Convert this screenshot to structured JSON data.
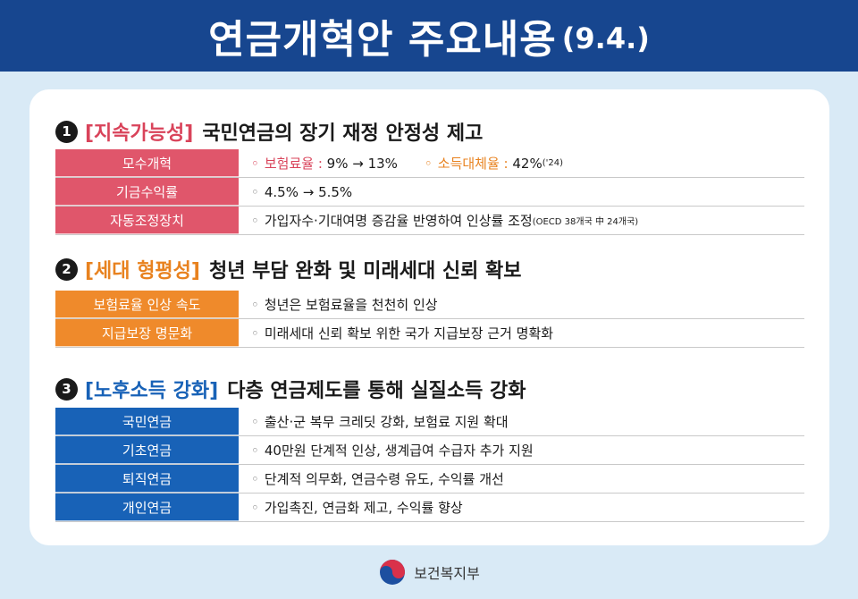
{
  "header": {
    "title": "연금개혁안 주요내용",
    "date": "(9.4.)"
  },
  "sections": [
    {
      "number": "1",
      "tag": "[지속가능성]",
      "title": "국민연금의 장기 재정 안정성 제고",
      "rows": [
        {
          "label": "모수개혁",
          "parts": {
            "a_label": "보험료율 :",
            "a_value": "9% → 13%",
            "b_label": "소득대체율 :",
            "b_value": "42%",
            "b_note": "('24)"
          }
        },
        {
          "label": "기금수익률",
          "text": "4.5% → 5.5%"
        },
        {
          "label": "자동조정장치",
          "text": "가입자수·기대여명 증감율 반영하여 인상률 조정",
          "note": "(OECD 38개국 中 24개국)"
        }
      ]
    },
    {
      "number": "2",
      "tag": "[세대 형평성]",
      "title": "청년 부담 완화 및 미래세대 신뢰 확보",
      "rows": [
        {
          "label": "보험료율 인상 속도",
          "text": "청년은 보험료율을 천천히 인상"
        },
        {
          "label": "지급보장 명문화",
          "text": "미래세대 신뢰 확보 위한 국가 지급보장 근거 명확화"
        }
      ]
    },
    {
      "number": "3",
      "tag": "[노후소득 강화]",
      "title": "다층 연금제도를 통해 실질소득 강화",
      "rows": [
        {
          "label": "국민연금",
          "text": "출산·군 복무 크레딧 강화, 보험료 지원 확대"
        },
        {
          "label": "기초연금",
          "text": "40만원 단계적 인상, 생계급여 수급자 추가 지원"
        },
        {
          "label": "퇴직연금",
          "text": "단계적 의무화, 연금수령 유도, 수익률 개선"
        },
        {
          "label": "개인연금",
          "text": "가입촉진, 연금화 제고, 수익률 향상"
        }
      ]
    }
  ],
  "bullet": "◦",
  "footer": {
    "ministry": "보건복지부",
    "logo_icon": "taegeuk-emblem-icon"
  },
  "colors": {
    "header": "#17468f",
    "section1": "#e0566b",
    "section2": "#ef8a2b",
    "section3": "#1862b7",
    "background": "#d9eaf6"
  }
}
